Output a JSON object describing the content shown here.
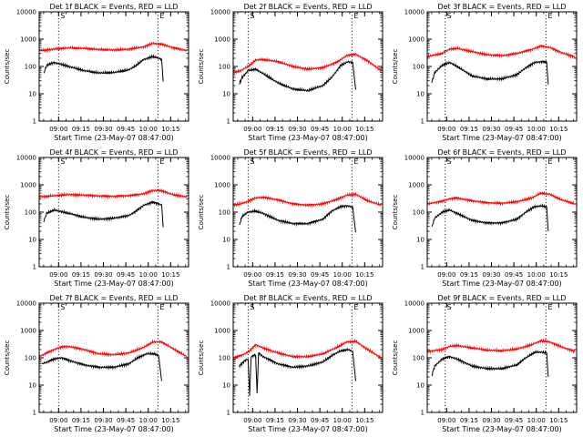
{
  "chart_data": [
    {
      "type": "line",
      "title": "Det 1f BLACK = Events, RED = LLD",
      "xlabel": "Start Time (23-May-07 08:47:00)",
      "ylabel": "Counts/sec",
      "x_ticks": [
        "09:00",
        "09:15",
        "09:30",
        "09:45",
        "10:00",
        "10:15"
      ],
      "y_ticks": [
        "1",
        "10",
        "100",
        "1000",
        "10000"
      ],
      "ylim": [
        1,
        10000
      ],
      "y_scale": "log",
      "markers": [
        "S",
        "E"
      ],
      "vlines_minutes": [
        13,
        79.5
      ],
      "series": [
        {
          "color": "#ff0000",
          "x": [
            0,
            10,
            20,
            30,
            40,
            50,
            60,
            70,
            76,
            82,
            90,
            99
          ],
          "y": [
            380,
            430,
            480,
            460,
            420,
            400,
            430,
            520,
            700,
            650,
            480,
            380
          ]
        },
        {
          "color": "#000000",
          "x": [
            3,
            5,
            10,
            20,
            30,
            40,
            50,
            60,
            65,
            70,
            76,
            80,
            82,
            83
          ],
          "y": [
            55,
            110,
            140,
            100,
            70,
            58,
            60,
            75,
            110,
            180,
            230,
            200,
            180,
            28
          ]
        }
      ]
    },
    {
      "type": "line",
      "title": "Det 2f BLACK = Events, RED = LLD",
      "xlabel": "Start Time (23-May-07 08:47:00)",
      "ylabel": "Counts/sec",
      "x_ticks": [
        "09:00",
        "09:15",
        "09:30",
        "09:45",
        "10:00",
        "10:15"
      ],
      "y_ticks": [
        "1",
        "10",
        "100",
        "1000",
        "10000"
      ],
      "ylim": [
        1,
        10000
      ],
      "y_scale": "log",
      "markers": [
        "S",
        "E"
      ],
      "vlines_minutes": [
        10,
        79.5
      ],
      "series": [
        {
          "color": "#ff0000",
          "x": [
            0,
            5,
            10,
            15,
            20,
            30,
            40,
            50,
            60,
            70,
            76,
            82,
            90,
            99
          ],
          "y": [
            60,
            70,
            100,
            170,
            180,
            150,
            100,
            80,
            90,
            150,
            250,
            280,
            160,
            70
          ]
        },
        {
          "color": "#000000",
          "x": [
            4,
            6,
            10,
            15,
            20,
            30,
            40,
            50,
            60,
            66,
            72,
            77,
            80,
            82
          ],
          "y": [
            22,
            40,
            70,
            80,
            55,
            25,
            15,
            13,
            20,
            40,
            110,
            150,
            140,
            14
          ]
        }
      ]
    },
    {
      "type": "line",
      "title": "Det 3f BLACK = Events, RED = LLD",
      "xlabel": "Start Time (23-May-07 08:47:00)",
      "ylabel": "Counts/sec",
      "x_ticks": [
        "09:00",
        "09:15",
        "09:30",
        "09:45",
        "10:00",
        "10:15"
      ],
      "y_ticks": [
        "1",
        "10",
        "100",
        "1000",
        "10000"
      ],
      "ylim": [
        1,
        10000
      ],
      "y_scale": "log",
      "markers": [
        "S",
        "E"
      ],
      "vlines_minutes": [
        12,
        79.5
      ],
      "series": [
        {
          "color": "#ff0000",
          "x": [
            0,
            10,
            15,
            20,
            30,
            40,
            50,
            60,
            70,
            76,
            82,
            90,
            99
          ],
          "y": [
            230,
            300,
            430,
            460,
            350,
            270,
            250,
            300,
            420,
            560,
            500,
            320,
            220
          ]
        },
        {
          "color": "#000000",
          "x": [
            3,
            5,
            10,
            15,
            20,
            30,
            40,
            50,
            60,
            66,
            72,
            77,
            80,
            81
          ],
          "y": [
            25,
            60,
            110,
            140,
            100,
            45,
            35,
            35,
            50,
            90,
            140,
            150,
            140,
            22
          ]
        }
      ]
    },
    {
      "type": "line",
      "title": "Det 4f BLACK = Events, RED = LLD",
      "xlabel": "Start Time (23-May-07 08:47:00)",
      "ylabel": "Counts/sec",
      "x_ticks": [
        "09:00",
        "09:15",
        "09:30",
        "09:45",
        "10:00",
        "10:15"
      ],
      "y_ticks": [
        "1",
        "10",
        "100",
        "1000",
        "10000"
      ],
      "ylim": [
        1,
        10000
      ],
      "y_scale": "log",
      "markers": [
        "S",
        "E"
      ],
      "vlines_minutes": [
        13,
        79.5
      ],
      "series": [
        {
          "color": "#ff0000",
          "x": [
            0,
            10,
            20,
            30,
            40,
            50,
            60,
            70,
            76,
            82,
            90,
            99
          ],
          "y": [
            360,
            400,
            440,
            420,
            390,
            380,
            400,
            470,
            620,
            600,
            430,
            360
          ]
        },
        {
          "color": "#000000",
          "x": [
            3,
            5,
            10,
            20,
            30,
            40,
            50,
            60,
            65,
            70,
            76,
            80,
            82,
            83
          ],
          "y": [
            45,
            90,
            120,
            90,
            65,
            55,
            60,
            75,
            110,
            180,
            230,
            200,
            180,
            28
          ]
        }
      ]
    },
    {
      "type": "line",
      "title": "Det 5f BLACK = Events, RED = LLD",
      "xlabel": "Start Time (23-May-07 08:47:00)",
      "ylabel": "Counts/sec",
      "x_ticks": [
        "09:00",
        "09:15",
        "09:30",
        "09:45",
        "10:00",
        "10:15"
      ],
      "y_ticks": [
        "1",
        "10",
        "100",
        "1000",
        "10000"
      ],
      "ylim": [
        1,
        10000
      ],
      "y_scale": "log",
      "markers": [
        "S",
        "E"
      ],
      "vlines_minutes": [
        10,
        79.5
      ],
      "series": [
        {
          "color": "#ff0000",
          "x": [
            0,
            5,
            10,
            15,
            20,
            30,
            40,
            50,
            60,
            70,
            76,
            82,
            90,
            99
          ],
          "y": [
            180,
            200,
            250,
            330,
            350,
            280,
            200,
            180,
            200,
            300,
            420,
            450,
            260,
            180
          ]
        },
        {
          "color": "#000000",
          "x": [
            4,
            6,
            10,
            15,
            20,
            30,
            40,
            50,
            60,
            66,
            72,
            77,
            80,
            82
          ],
          "y": [
            32,
            70,
            100,
            110,
            90,
            50,
            38,
            38,
            55,
            110,
            160,
            170,
            150,
            18
          ]
        }
      ]
    },
    {
      "type": "line",
      "title": "Det 6f BLACK = Events, RED = LLD",
      "xlabel": "Start Time (23-May-07 08:47:00)",
      "ylabel": "Counts/sec",
      "x_ticks": [
        "09:00",
        "09:15",
        "09:30",
        "09:45",
        "10:00",
        "10:15"
      ],
      "y_ticks": [
        "1",
        "10",
        "100",
        "1000",
        "10000"
      ],
      "ylim": [
        1,
        10000
      ],
      "y_scale": "log",
      "markers": [
        "S",
        "E"
      ],
      "vlines_minutes": [
        12,
        79.5
      ],
      "series": [
        {
          "color": "#ff0000",
          "x": [
            0,
            10,
            15,
            20,
            30,
            40,
            50,
            60,
            70,
            76,
            82,
            90,
            99
          ],
          "y": [
            200,
            250,
            310,
            330,
            260,
            220,
            210,
            240,
            330,
            500,
            450,
            280,
            200
          ]
        },
        {
          "color": "#000000",
          "x": [
            3,
            5,
            10,
            15,
            20,
            30,
            40,
            50,
            60,
            66,
            72,
            77,
            80,
            81
          ],
          "y": [
            28,
            60,
            100,
            120,
            90,
            50,
            40,
            40,
            55,
            100,
            160,
            170,
            150,
            20
          ]
        }
      ]
    },
    {
      "type": "line",
      "title": "Det 7f BLACK = Events, RED = LLD",
      "xlabel": "Start Time (23-May-07 08:47:00)",
      "ylabel": "Counts/sec",
      "x_ticks": [
        "09:00",
        "09:15",
        "09:30",
        "09:45",
        "10:00",
        "10:15"
      ],
      "y_ticks": [
        "1",
        "10",
        "100",
        "1000",
        "10000"
      ],
      "ylim": [
        1,
        10000
      ],
      "y_scale": "log",
      "markers": [
        "S",
        "E"
      ],
      "vlines_minutes": [
        13,
        79.5
      ],
      "series": [
        {
          "color": "#ff0000",
          "x": [
            0,
            5,
            10,
            15,
            20,
            30,
            40,
            50,
            60,
            70,
            76,
            82,
            90,
            99
          ],
          "y": [
            110,
            150,
            200,
            250,
            260,
            200,
            140,
            130,
            150,
            240,
            380,
            380,
            210,
            110
          ]
        },
        {
          "color": "#000000",
          "x": [
            2,
            5,
            10,
            15,
            20,
            30,
            40,
            50,
            60,
            66,
            72,
            77,
            80,
            82
          ],
          "y": [
            60,
            70,
            90,
            100,
            80,
            55,
            45,
            45,
            60,
            100,
            140,
            140,
            120,
            14
          ]
        }
      ]
    },
    {
      "type": "line",
      "title": "Det 8f BLACK = Events, RED = LLD",
      "xlabel": "Start Time (23-May-07 08:47:00)",
      "ylabel": "Counts/sec",
      "x_ticks": [
        "09:00",
        "09:15",
        "09:30",
        "09:45",
        "10:00",
        "10:15"
      ],
      "y_ticks": [
        "1",
        "10",
        "100",
        "1000",
        "10000"
      ],
      "ylim": [
        1,
        10000
      ],
      "y_scale": "log",
      "markers": [
        "S",
        "E"
      ],
      "vlines_minutes": [
        10,
        79.5
      ],
      "series": [
        {
          "color": "#ff0000",
          "x": [
            0,
            5,
            8,
            12,
            15,
            20,
            30,
            40,
            50,
            60,
            70,
            76,
            82,
            90,
            99
          ],
          "y": [
            100,
            120,
            140,
            200,
            300,
            230,
            150,
            110,
            110,
            140,
            250,
            380,
            400,
            200,
            100
          ]
        },
        {
          "color": "#000000",
          "x": [
            4,
            8,
            10,
            11,
            12,
            15,
            16,
            17,
            20,
            30,
            40,
            50,
            60,
            66,
            72,
            77,
            80,
            82
          ],
          "y": [
            50,
            80,
            90,
            4,
            110,
            130,
            5,
            150,
            110,
            60,
            45,
            50,
            70,
            120,
            180,
            200,
            170,
            14
          ]
        }
      ]
    },
    {
      "type": "line",
      "title": "Det 9f BLACK = Events, RED = LLD",
      "xlabel": "Start Time (23-May-07 08:47:00)",
      "ylabel": "Counts/sec",
      "x_ticks": [
        "09:00",
        "09:15",
        "09:30",
        "09:45",
        "10:00",
        "10:15"
      ],
      "y_ticks": [
        "1",
        "10",
        "100",
        "1000",
        "10000"
      ],
      "ylim": [
        1,
        10000
      ],
      "y_scale": "log",
      "markers": [
        "S",
        "E"
      ],
      "vlines_minutes": [
        12,
        79.5
      ],
      "series": [
        {
          "color": "#ff0000",
          "x": [
            0,
            10,
            15,
            20,
            30,
            40,
            50,
            60,
            70,
            76,
            82,
            90,
            99
          ],
          "y": [
            170,
            200,
            260,
            280,
            230,
            190,
            180,
            210,
            300,
            420,
            380,
            250,
            170
          ]
        },
        {
          "color": "#000000",
          "x": [
            3,
            5,
            10,
            15,
            20,
            30,
            40,
            50,
            60,
            66,
            72,
            77,
            80,
            81
          ],
          "y": [
            22,
            50,
            90,
            110,
            90,
            50,
            40,
            40,
            55,
            100,
            160,
            160,
            150,
            20
          ]
        }
      ]
    }
  ]
}
